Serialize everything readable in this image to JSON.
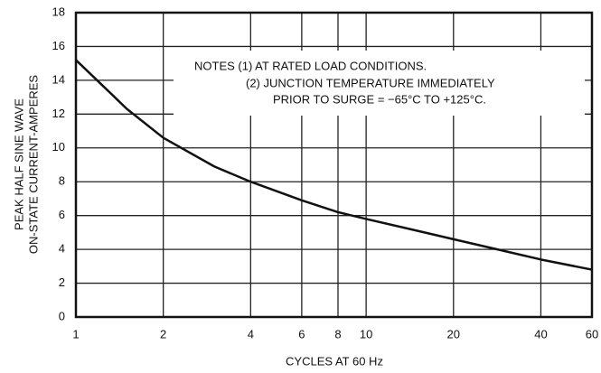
{
  "chart_data": {
    "type": "line",
    "xlabel": "CYCLES AT 60 Hz",
    "ylabel": [
      "PEAK HALF SINE WAVE",
      "ON-STATE CURRENT-AMPERES"
    ],
    "annotations": [
      "NOTES (1) AT RATED LOAD CONDITIONS.",
      "(2) JUNCTION TEMPERATURE IMMEDIATELY",
      "PRIOR TO SURGE = −65°C TO +125°C."
    ],
    "x": [
      1,
      1.5,
      2,
      3,
      4,
      6,
      8,
      10,
      15,
      20,
      30,
      40,
      60
    ],
    "series": [
      {
        "color": "#111111",
        "values": [
          15.2,
          12.3,
          10.6,
          8.9,
          8.0,
          6.9,
          6.2,
          5.8,
          5.1,
          4.6,
          3.9,
          3.4,
          2.8
        ]
      }
    ],
    "xscale": "log",
    "xlim": [
      1,
      60
    ],
    "xticks": [
      1,
      2,
      4,
      6,
      8,
      10,
      20,
      40,
      60
    ],
    "ylim": [
      0,
      18
    ],
    "yticks": [
      0,
      2,
      4,
      6,
      8,
      10,
      12,
      14,
      16,
      18
    ],
    "grid": true
  }
}
